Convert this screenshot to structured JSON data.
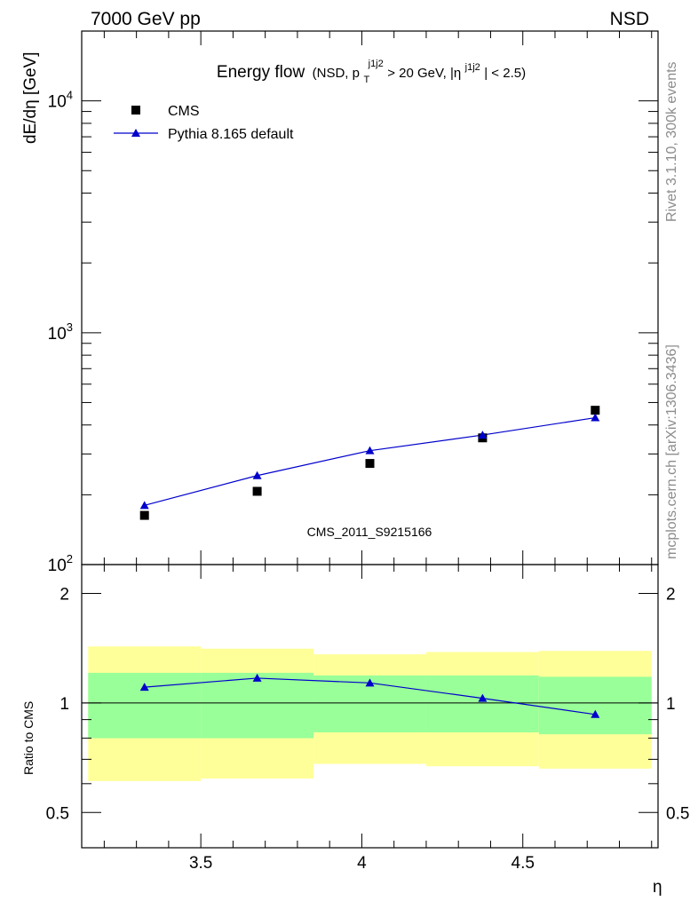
{
  "header": {
    "left": "7000 GeV pp",
    "right": "NSD"
  },
  "side": {
    "rivet": "Rivet 3.1.10,  300k events",
    "mcplots": "mcplots.cern.ch [arXiv:1306.3436]"
  },
  "chart_data": [
    {
      "type": "scatter",
      "title_main": "Energy flow",
      "title_detail": {
        "open": "(NSD, p",
        "sub": "T",
        "sup": "j1j2",
        "mid": " > 20 GeV, |η",
        "sup2": "j1j2",
        "close": "| < 2.5)"
      },
      "ylabel": "dE/dη [GeV]",
      "watermark": "CMS_2011_S9215166",
      "yscale": "log",
      "xlim": [
        3.13,
        4.92
      ],
      "ylim": [
        100,
        20000
      ],
      "ytick_labels": [
        {
          "base": "10",
          "exp": "2",
          "value": 100
        },
        {
          "base": "10",
          "exp": "3",
          "value": 1000
        },
        {
          "base": "10",
          "exp": "4",
          "value": 10000
        }
      ],
      "legend_position": "top-left",
      "series": [
        {
          "name": "CMS",
          "marker": "square",
          "color": "#000000",
          "x": [
            3.325,
            3.675,
            4.025,
            4.375,
            4.725
          ],
          "y": [
            163,
            207,
            273,
            352,
            463
          ]
        },
        {
          "name": "Pythia 8.165 default",
          "marker": "triangle",
          "color": "#0000cc",
          "x": [
            3.325,
            3.675,
            4.025,
            4.375,
            4.725
          ],
          "y": [
            180,
            242,
            310,
            362,
            430
          ]
        }
      ]
    },
    {
      "type": "line",
      "ylabel": "Ratio to CMS",
      "xlabel": "η",
      "xlim": [
        3.13,
        4.92
      ],
      "ylim": [
        0.4,
        2.4
      ],
      "yscale": "log",
      "xtick_labels": [
        "3.5",
        "4",
        "4.5"
      ],
      "xtick_values": [
        3.5,
        4.0,
        4.5
      ],
      "ytick_labels": [
        "0.5",
        "1",
        "2"
      ],
      "ytick_values": [
        0.5,
        1,
        2
      ],
      "bands": {
        "edges": [
          3.15,
          3.5,
          3.85,
          4.2,
          4.55,
          4.9
        ],
        "inner": [
          [
            0.8,
            1.21
          ],
          [
            0.8,
            1.21
          ],
          [
            0.83,
            1.19
          ],
          [
            0.83,
            1.19
          ],
          [
            0.82,
            1.18
          ]
        ],
        "outer": [
          [
            0.61,
            1.43
          ],
          [
            0.62,
            1.41
          ],
          [
            0.68,
            1.36
          ],
          [
            0.67,
            1.38
          ],
          [
            0.66,
            1.39
          ]
        ],
        "inner_color": "#99ff99",
        "outer_color": "#ffff99"
      },
      "series": [
        {
          "name": "Pythia 8.165 default",
          "color": "#0000cc",
          "x": [
            3.325,
            3.675,
            4.025,
            4.375,
            4.725
          ],
          "y": [
            1.105,
            1.17,
            1.135,
            1.03,
            0.93
          ]
        }
      ]
    }
  ]
}
